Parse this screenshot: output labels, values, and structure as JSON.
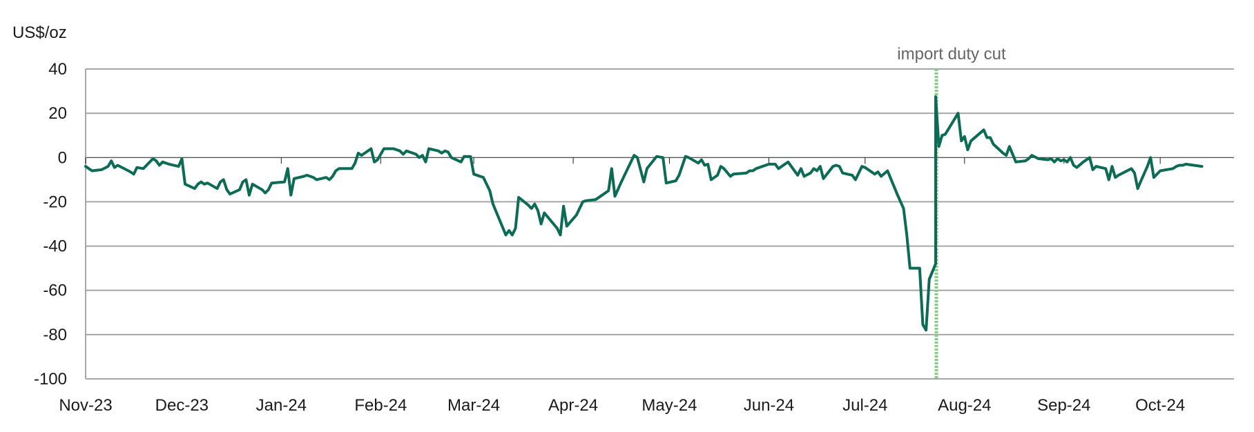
{
  "chart_data": {
    "type": "line",
    "ylabel": "US$/oz",
    "ylim": [
      -100,
      40
    ],
    "yticks": [
      40,
      20,
      0,
      -20,
      -40,
      -60,
      -80,
      -100
    ],
    "xlim": [
      "2023-11-01",
      "2024-10-24"
    ],
    "xticks": [
      {
        "date": "2023-11-01",
        "label": "Nov-23"
      },
      {
        "date": "2023-12-01",
        "label": "Dec-23"
      },
      {
        "date": "2024-01-01",
        "label": "Jan-24"
      },
      {
        "date": "2024-02-01",
        "label": "Feb-24"
      },
      {
        "date": "2024-03-01",
        "label": "Mar-24"
      },
      {
        "date": "2024-04-01",
        "label": "Apr-24"
      },
      {
        "date": "2024-05-01",
        "label": "May-24"
      },
      {
        "date": "2024-06-01",
        "label": "Jun-24"
      },
      {
        "date": "2024-07-01",
        "label": "Jul-24"
      },
      {
        "date": "2024-08-01",
        "label": "Aug-24"
      },
      {
        "date": "2024-09-01",
        "label": "Sep-24"
      },
      {
        "date": "2024-10-01",
        "label": "Oct-24"
      }
    ],
    "grid": true,
    "annotation": {
      "date": "2024-07-23",
      "label": "import duty cut",
      "color": "#7dd37d"
    },
    "series": [
      {
        "color": "#0b6b55",
        "points": [
          [
            "2023-11-01",
            -4
          ],
          [
            "2023-11-03",
            -6
          ],
          [
            "2023-11-06",
            -5.5
          ],
          [
            "2023-11-08",
            -4
          ],
          [
            "2023-11-09",
            -1.5
          ],
          [
            "2023-11-10",
            -4.5
          ],
          [
            "2023-11-11",
            -3.5
          ],
          [
            "2023-11-15",
            -6.5
          ],
          [
            "2023-11-16",
            -7.5
          ],
          [
            "2023-11-17",
            -4.5
          ],
          [
            "2023-11-19",
            -5
          ],
          [
            "2023-11-21",
            -2
          ],
          [
            "2023-11-22",
            -0.5
          ],
          [
            "2023-11-23",
            -1.5
          ],
          [
            "2023-11-24",
            -3.5
          ],
          [
            "2023-11-25",
            -2
          ],
          [
            "2023-11-27",
            -3
          ],
          [
            "2023-11-30",
            -4
          ],
          [
            "2023-12-01",
            -0.5
          ],
          [
            "2023-12-02",
            -12
          ],
          [
            "2023-12-05",
            -14
          ],
          [
            "2023-12-06",
            -12
          ],
          [
            "2023-12-07",
            -11
          ],
          [
            "2023-12-08",
            -12
          ],
          [
            "2023-12-09",
            -11.5
          ],
          [
            "2023-12-12",
            -14
          ],
          [
            "2023-12-13",
            -11
          ],
          [
            "2023-12-14",
            -10
          ],
          [
            "2023-12-15",
            -14.5
          ],
          [
            "2023-12-16",
            -16.5
          ],
          [
            "2023-12-19",
            -14.5
          ],
          [
            "2023-12-20",
            -11
          ],
          [
            "2023-12-21",
            -10
          ],
          [
            "2023-12-22",
            -17
          ],
          [
            "2023-12-23",
            -12
          ],
          [
            "2023-12-26",
            -14.5
          ],
          [
            "2023-12-27",
            -16
          ],
          [
            "2023-12-28",
            -14.5
          ],
          [
            "2023-12-29",
            -11.5
          ],
          [
            "2024-01-02",
            -11
          ],
          [
            "2024-01-03",
            -5
          ],
          [
            "2024-01-04",
            -17
          ],
          [
            "2024-01-05",
            -9.5
          ],
          [
            "2024-01-08",
            -8.5
          ],
          [
            "2024-01-09",
            -8
          ],
          [
            "2024-01-11",
            -9
          ],
          [
            "2024-01-12",
            -10
          ],
          [
            "2024-01-15",
            -9
          ],
          [
            "2024-01-16",
            -10
          ],
          [
            "2024-01-17",
            -8.5
          ],
          [
            "2024-01-18",
            -6
          ],
          [
            "2024-01-19",
            -5
          ],
          [
            "2024-01-22",
            -5
          ],
          [
            "2024-01-23",
            -5
          ],
          [
            "2024-01-24",
            -2.5
          ],
          [
            "2024-01-25",
            2
          ],
          [
            "2024-01-26",
            1
          ],
          [
            "2024-01-29",
            4
          ],
          [
            "2024-01-30",
            -2
          ],
          [
            "2024-01-31",
            -1
          ],
          [
            "2024-02-02",
            4
          ],
          [
            "2024-02-05",
            4
          ],
          [
            "2024-02-07",
            3
          ],
          [
            "2024-02-08",
            1.5
          ],
          [
            "2024-02-09",
            3
          ],
          [
            "2024-02-12",
            1.5
          ],
          [
            "2024-02-13",
            0
          ],
          [
            "2024-02-14",
            1
          ],
          [
            "2024-02-15",
            -2
          ],
          [
            "2024-02-16",
            4
          ],
          [
            "2024-02-19",
            3
          ],
          [
            "2024-02-20",
            2
          ],
          [
            "2024-02-21",
            3
          ],
          [
            "2024-02-22",
            2.5
          ],
          [
            "2024-02-23",
            0
          ],
          [
            "2024-02-26",
            -2
          ],
          [
            "2024-02-27",
            0.5
          ],
          [
            "2024-02-29",
            0.5
          ],
          [
            "2024-03-01",
            -7.5
          ],
          [
            "2024-03-04",
            -9
          ],
          [
            "2024-03-06",
            -15
          ],
          [
            "2024-03-07",
            -21
          ],
          [
            "2024-03-11",
            -35
          ],
          [
            "2024-03-12",
            -33
          ],
          [
            "2024-03-13",
            -35
          ],
          [
            "2024-03-14",
            -32
          ],
          [
            "2024-03-15",
            -18
          ],
          [
            "2024-03-18",
            -21.5
          ],
          [
            "2024-03-19",
            -23
          ],
          [
            "2024-03-20",
            -21
          ],
          [
            "2024-03-21",
            -24
          ],
          [
            "2024-03-22",
            -30
          ],
          [
            "2024-03-23",
            -25
          ],
          [
            "2024-03-27",
            -32
          ],
          [
            "2024-03-28",
            -35
          ],
          [
            "2024-03-29",
            -22
          ],
          [
            "2024-03-30",
            -31
          ],
          [
            "2024-04-02",
            -26
          ],
          [
            "2024-04-04",
            -20
          ],
          [
            "2024-04-05",
            -19.5
          ],
          [
            "2024-04-08",
            -19
          ],
          [
            "2024-04-10",
            -17
          ],
          [
            "2024-04-12",
            -15
          ],
          [
            "2024-04-13",
            -5
          ],
          [
            "2024-04-14",
            -17.5
          ],
          [
            "2024-04-16",
            -11
          ],
          [
            "2024-04-18",
            -5
          ],
          [
            "2024-04-20",
            1
          ],
          [
            "2024-04-21",
            0
          ],
          [
            "2024-04-23",
            -11
          ],
          [
            "2024-04-24",
            -5
          ],
          [
            "2024-04-27",
            0.5
          ],
          [
            "2024-04-29",
            0
          ],
          [
            "2024-04-30",
            -11.5
          ],
          [
            "2024-05-03",
            -10.5
          ],
          [
            "2024-05-04",
            -8
          ],
          [
            "2024-05-06",
            0.5
          ],
          [
            "2024-05-07",
            0
          ],
          [
            "2024-05-10",
            -2.5
          ],
          [
            "2024-05-11",
            -1
          ],
          [
            "2024-05-12",
            -3.5
          ],
          [
            "2024-05-13",
            -3
          ],
          [
            "2024-05-14",
            -10
          ],
          [
            "2024-05-16",
            -8
          ],
          [
            "2024-05-17",
            -4
          ],
          [
            "2024-05-18",
            -5
          ],
          [
            "2024-05-20",
            -8.5
          ],
          [
            "2024-05-21",
            -7.5
          ],
          [
            "2024-05-25",
            -7
          ],
          [
            "2024-05-26",
            -6
          ],
          [
            "2024-05-27",
            -6
          ],
          [
            "2024-05-28",
            -5
          ],
          [
            "2024-06-01",
            -3
          ],
          [
            "2024-06-03",
            -3
          ],
          [
            "2024-06-04",
            -5
          ],
          [
            "2024-06-07",
            -2
          ],
          [
            "2024-06-10",
            -8
          ],
          [
            "2024-06-11",
            -5
          ],
          [
            "2024-06-12",
            -8.5
          ],
          [
            "2024-06-14",
            -7
          ],
          [
            "2024-06-15",
            -5
          ],
          [
            "2024-06-16",
            -6
          ],
          [
            "2024-06-17",
            -4
          ],
          [
            "2024-06-18",
            -9.5
          ],
          [
            "2024-06-21",
            -4
          ],
          [
            "2024-06-22",
            -3.5
          ],
          [
            "2024-06-23",
            -4
          ],
          [
            "2024-06-24",
            -7
          ],
          [
            "2024-06-27",
            -8
          ],
          [
            "2024-06-28",
            -10
          ],
          [
            "2024-06-30",
            -4
          ],
          [
            "2024-07-01",
            -4.5
          ],
          [
            "2024-07-02",
            -5.5
          ],
          [
            "2024-07-04",
            -7.5
          ],
          [
            "2024-07-05",
            -6.5
          ],
          [
            "2024-07-06",
            -8.5
          ],
          [
            "2024-07-08",
            -6
          ],
          [
            "2024-07-11",
            -16.5
          ],
          [
            "2024-07-13",
            -23
          ],
          [
            "2024-07-14",
            -35
          ],
          [
            "2024-07-15",
            -50
          ],
          [
            "2024-07-18",
            -50
          ],
          [
            "2024-07-19",
            -75.5
          ],
          [
            "2024-07-20",
            -78
          ],
          [
            "2024-07-21",
            -55
          ],
          [
            "2024-07-23",
            -48
          ],
          [
            "2024-07-23",
            27.5
          ],
          [
            "2024-07-24",
            5
          ],
          [
            "2024-07-25",
            10
          ],
          [
            "2024-07-26",
            10.5
          ],
          [
            "2024-07-30",
            20
          ],
          [
            "2024-07-31",
            7.5
          ],
          [
            "2024-08-01",
            9.5
          ],
          [
            "2024-08-02",
            3.5
          ],
          [
            "2024-08-03",
            7.5
          ],
          [
            "2024-08-07",
            12.5
          ],
          [
            "2024-08-08",
            9
          ],
          [
            "2024-08-09",
            9
          ],
          [
            "2024-08-10",
            6
          ],
          [
            "2024-08-13",
            2
          ],
          [
            "2024-08-14",
            1
          ],
          [
            "2024-08-15",
            5
          ],
          [
            "2024-08-17",
            -2
          ],
          [
            "2024-08-20",
            -1.5
          ],
          [
            "2024-08-21",
            -0.5
          ],
          [
            "2024-08-22",
            1
          ],
          [
            "2024-08-24",
            -0.5
          ],
          [
            "2024-08-27",
            -1
          ],
          [
            "2024-08-28",
            -0.5
          ],
          [
            "2024-08-29",
            -2
          ],
          [
            "2024-08-30",
            -0.5
          ],
          [
            "2024-08-31",
            -1.5
          ],
          [
            "2024-09-01",
            -1
          ],
          [
            "2024-09-02",
            -2
          ],
          [
            "2024-09-03",
            0
          ],
          [
            "2024-09-04",
            -3.5
          ],
          [
            "2024-09-05",
            -4.5
          ],
          [
            "2024-09-07",
            -2
          ],
          [
            "2024-09-09",
            0
          ],
          [
            "2024-09-10",
            -5.5
          ],
          [
            "2024-09-11",
            -4
          ],
          [
            "2024-09-14",
            -5
          ],
          [
            "2024-09-15",
            -10
          ],
          [
            "2024-09-16",
            -4
          ],
          [
            "2024-09-17",
            -9
          ],
          [
            "2024-09-18",
            -8
          ],
          [
            "2024-09-22",
            -5
          ],
          [
            "2024-09-23",
            -7
          ],
          [
            "2024-09-24",
            -14
          ],
          [
            "2024-09-25",
            -10.5
          ],
          [
            "2024-09-27",
            -4
          ],
          [
            "2024-09-28",
            0
          ],
          [
            "2024-09-29",
            -9
          ],
          [
            "2024-10-01",
            -6
          ],
          [
            "2024-10-05",
            -5
          ],
          [
            "2024-10-06",
            -4
          ],
          [
            "2024-10-07",
            -3.5
          ],
          [
            "2024-10-08",
            -3.5
          ],
          [
            "2024-10-09",
            -3
          ],
          [
            "2024-10-14",
            -4
          ]
        ]
      }
    ]
  }
}
